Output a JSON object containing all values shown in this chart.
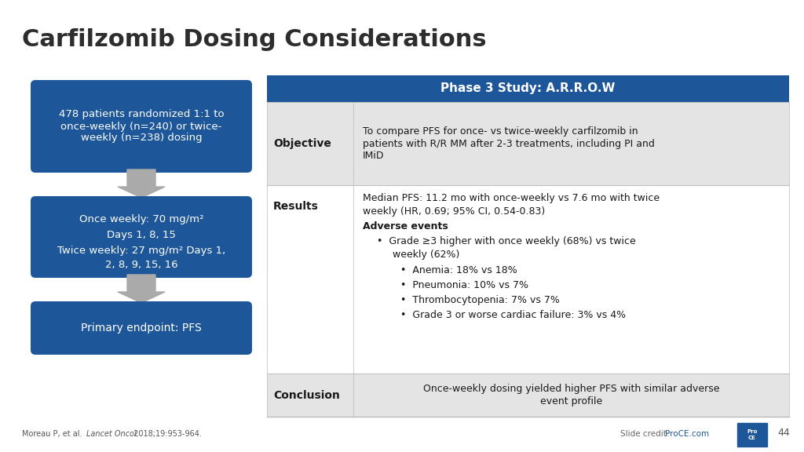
{
  "title": "Carfilzomib Dosing Considerations",
  "title_fontsize": 22,
  "title_color": "#2d2d2d",
  "slide_bg": "#ffffff",
  "box_blue": "#1e5799",
  "table_header_bg": "#1e5799",
  "table_header_color": "#ffffff",
  "table_row1_bg": "#e4e4e4",
  "table_row2_bg": "#ffffff",
  "table_row3_bg": "#e4e4e4",
  "table_border": "#bbbbbb",
  "arrow_color": "#aaaaaa",
  "text_dark": "#1a1a1a",
  "box1_text": "478 patients randomized 1:1 to\nonce-weekly (n=240) or twice-\nweekly (n=238) dosing",
  "box2_line1": "Once weekly: 70 mg/m²",
  "box2_line2": "Days 1, 8, 15",
  "box2_line3": "Twice weekly: 27 mg/m² Days 1,",
  "box2_line4": "2, 8, 9, 15, 16",
  "box3_text": "Primary endpoint: PFS",
  "table_header": "Phase 3 Study: A.R.R.O.W",
  "obj_label": "Objective",
  "obj_content": "To compare PFS for once- vs twice-weekly carfilzomib in\npatients with R/R MM after 2-3 treatments, including PI and\nIMiD",
  "res_label": "Results",
  "res_line1": "Median PFS: 11.2 mo with once-weekly vs 7.6 mo with twice",
  "res_line2": "weekly (HR, 0.69; 95% CI, 0.54-0.83)",
  "res_adverse": "Adverse events",
  "res_bullet1": "•  Grade ≥3 higher with once weekly (68%) vs twice",
  "res_bullet1b": "     weekly (62%)",
  "res_sub1": "•  Anemia: 18% vs 18%",
  "res_sub2": "•  Pneumonia: 10% vs 7%",
  "res_sub3": "•  Thrombocytopenia: 7% vs 7%",
  "res_sub4": "•  Grade 3 or worse cardiac failure: 3% vs 4%",
  "conc_label": "Conclusion",
  "conc_content": "Once-weekly dosing yielded higher PFS with similar adverse\nevent profile",
  "footnote": "Moreau P, et al. ",
  "footnote_italic": "Lancet Oncol.",
  "footnote_end": " 2018;19:953-964.",
  "slide_credit": "Slide credit: ",
  "proce_text": "ProCE.com",
  "page_num": "44"
}
